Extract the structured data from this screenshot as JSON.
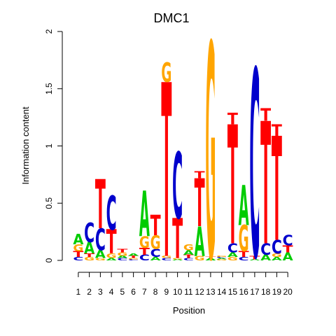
{
  "chart_data": {
    "type": "sequence-logo",
    "title": "DMC1",
    "xlabel": "Position",
    "ylabel": "Information content",
    "ylim": [
      0,
      2
    ],
    "yticks": [
      "0",
      "0.5",
      "1",
      "1.5",
      "2"
    ],
    "ytick_values": [
      0,
      0.5,
      1,
      1.5,
      2
    ],
    "positions": [
      "1",
      "2",
      "3",
      "4",
      "5",
      "6",
      "7",
      "8",
      "9",
      "10",
      "11",
      "12",
      "13",
      "14",
      "15",
      "16",
      "17",
      "18",
      "19",
      "20"
    ],
    "colors": {
      "A": "#00cc00",
      "C": "#0000cc",
      "G": "#ffa500",
      "T": "#ff0000"
    },
    "stacks": [
      [
        [
          "C",
          0.03
        ],
        [
          "T",
          0.05
        ],
        [
          "G",
          0.06
        ],
        [
          "A",
          0.09
        ]
      ],
      [
        [
          "G",
          0.03
        ],
        [
          "T",
          0.03
        ],
        [
          "A",
          0.1
        ],
        [
          "C",
          0.17
        ]
      ],
      [
        [
          "G",
          0.02
        ],
        [
          "A",
          0.07
        ],
        [
          "C",
          0.19
        ],
        [
          "T",
          0.43
        ]
      ],
      [
        [
          "A",
          0.02
        ],
        [
          "G",
          0.04
        ],
        [
          "T",
          0.21
        ],
        [
          "C",
          0.3
        ]
      ],
      [
        [
          "C",
          0.02
        ],
        [
          "A",
          0.02
        ],
        [
          "G",
          0.03
        ],
        [
          "T",
          0.03
        ]
      ],
      [
        [
          "C",
          0.01
        ],
        [
          "G",
          0.01
        ],
        [
          "T",
          0.02
        ],
        [
          "A",
          0.02
        ]
      ],
      [
        [
          "C",
          0.05
        ],
        [
          "T",
          0.06
        ],
        [
          "G",
          0.1
        ],
        [
          "A",
          0.4
        ]
      ],
      [
        [
          "A",
          0.03
        ],
        [
          "C",
          0.07
        ],
        [
          "G",
          0.12
        ],
        [
          "T",
          0.18
        ]
      ],
      [
        [
          "C",
          0.02
        ],
        [
          "G",
          0.02
        ],
        [
          "T",
          1.52
        ],
        [
          "G",
          0.17
        ]
      ],
      [
        [
          "A",
          0.01
        ],
        [
          "G",
          0.01
        ],
        [
          "T",
          0.35
        ],
        [
          "C",
          0.58
        ]
      ],
      [
        [
          "C",
          0.02
        ],
        [
          "T",
          0.03
        ],
        [
          "A",
          0.04
        ],
        [
          "G",
          0.05
        ]
      ],
      [
        [
          "G",
          0.04
        ],
        [
          "A",
          0.26
        ],
        [
          "T",
          0.42
        ],
        [
          "T",
          0.06
        ]
      ],
      [
        [
          "A",
          0.02
        ],
        [
          "T",
          0.01
        ],
        [
          "G",
          1.88
        ]
      ],
      [
        [
          "G",
          0.01
        ],
        [
          "A",
          0.01
        ],
        [
          "C",
          0.01
        ],
        [
          "G",
          0.01
        ]
      ],
      [
        [
          "G",
          0.03
        ],
        [
          "A",
          0.04
        ],
        [
          "C",
          0.08
        ],
        [
          "T",
          1.04
        ],
        [
          "T",
          0.1
        ]
      ],
      [
        [
          "C",
          0.03
        ],
        [
          "T",
          0.05
        ],
        [
          "G",
          0.23
        ],
        [
          "A",
          0.35
        ]
      ],
      [
        [
          "A",
          0.01
        ],
        [
          "T",
          0.03
        ],
        [
          "C",
          1.64
        ]
      ],
      [
        [
          "A",
          0.05
        ],
        [
          "C",
          0.1
        ],
        [
          "T",
          1.07
        ],
        [
          "T",
          0.11
        ]
      ],
      [
        [
          "A",
          0.03
        ],
        [
          "G",
          0.03
        ],
        [
          "C",
          0.12
        ],
        [
          "T",
          0.91
        ],
        [
          "T",
          0.1
        ]
      ],
      [
        [
          "A",
          0.07
        ],
        [
          "T",
          0.06
        ],
        [
          "C",
          0.09
        ]
      ]
    ]
  }
}
